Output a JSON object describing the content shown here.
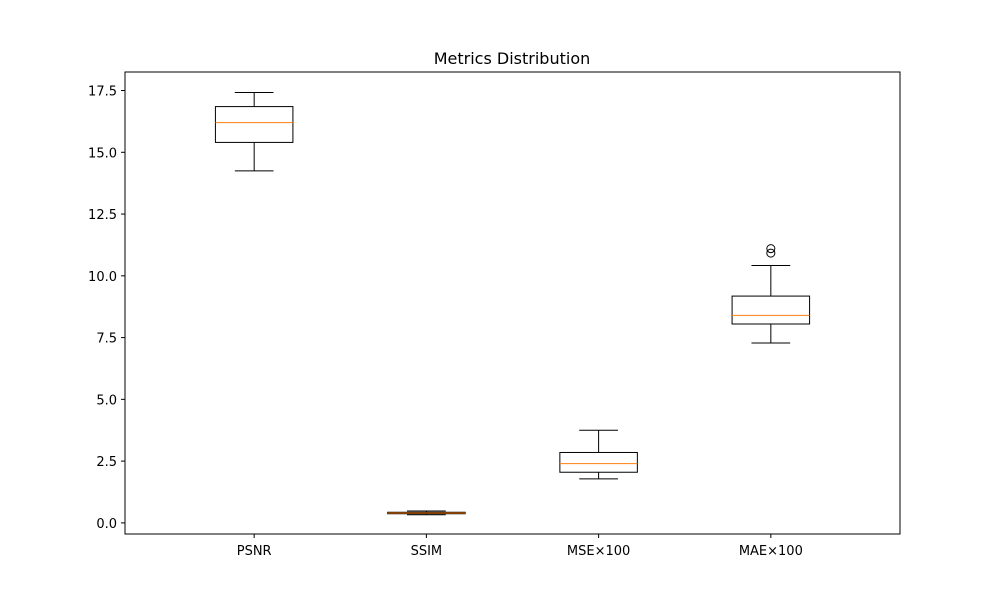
{
  "chart_data": {
    "type": "boxplot",
    "title": "Metrics Distribution",
    "xlabel": "",
    "ylabel": "",
    "categories": [
      "PSNR",
      "SSIM",
      "MSE×100",
      "MAE×100"
    ],
    "ylim": [
      -0.45,
      18.25
    ],
    "yticks": [
      0.0,
      2.5,
      5.0,
      7.5,
      10.0,
      12.5,
      15.0,
      17.5
    ],
    "ytick_labels": [
      "0.0",
      "2.5",
      "5.0",
      "7.5",
      "10.0",
      "12.5",
      "15.0",
      "17.5"
    ],
    "grid": false,
    "legend": "none",
    "box_color": "#000000",
    "median_color": "#ff7f0e",
    "boxes": [
      {
        "category": "PSNR",
        "whisker_low": 14.25,
        "q1": 15.4,
        "median": 16.2,
        "q3": 16.85,
        "whisker_high": 17.42,
        "outliers": []
      },
      {
        "category": "SSIM",
        "whisker_low": 0.33,
        "q1": 0.37,
        "median": 0.4,
        "q3": 0.43,
        "whisker_high": 0.48,
        "outliers": []
      },
      {
        "category": "MSE×100",
        "whisker_low": 1.78,
        "q1": 2.05,
        "median": 2.4,
        "q3": 2.85,
        "whisker_high": 3.75,
        "outliers": []
      },
      {
        "category": "MAE×100",
        "whisker_low": 7.28,
        "q1": 8.05,
        "median": 8.4,
        "q3": 9.18,
        "whisker_high": 10.42,
        "outliers": [
          10.92,
          11.1
        ]
      }
    ]
  }
}
